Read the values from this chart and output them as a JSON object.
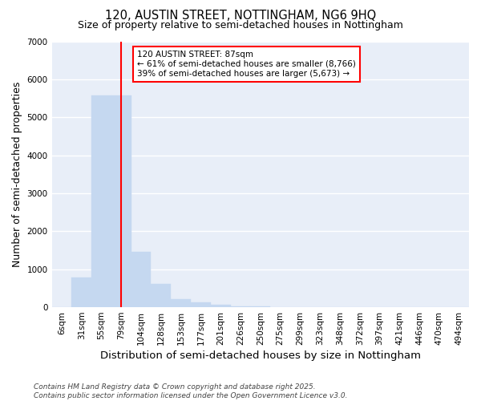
{
  "title1": "120, AUSTIN STREET, NOTTINGHAM, NG6 9HQ",
  "title2": "Size of property relative to semi-detached houses in Nottingham",
  "xlabel": "Distribution of semi-detached houses by size in Nottingham",
  "ylabel": "Number of semi-detached properties",
  "categories": [
    "6sqm",
    "31sqm",
    "55sqm",
    "79sqm",
    "104sqm",
    "128sqm",
    "153sqm",
    "177sqm",
    "201sqm",
    "226sqm",
    "250sqm",
    "275sqm",
    "299sqm",
    "323sqm",
    "348sqm",
    "372sqm",
    "397sqm",
    "421sqm",
    "446sqm",
    "470sqm",
    "494sqm"
  ],
  "values": [
    5,
    780,
    5570,
    5570,
    1450,
    620,
    220,
    120,
    60,
    25,
    15,
    0,
    0,
    0,
    0,
    0,
    0,
    0,
    0,
    0,
    0
  ],
  "bar_color": "#c5d8f0",
  "bar_edgecolor": "#c5d8f0",
  "vline_color": "red",
  "vline_x": 3.5,
  "vline_label": "120 AUSTIN STREET: 87sqm",
  "arrow_left_text": "← 61% of semi-detached houses are smaller (8,766)",
  "arrow_right_text": "39% of semi-detached houses are larger (5,673) →",
  "annotation_box_color": "red",
  "annotation_text_color": "black",
  "ylim": [
    0,
    7000
  ],
  "yticks": [
    0,
    1000,
    2000,
    3000,
    4000,
    5000,
    6000,
    7000
  ],
  "bg_color": "#e8eef8",
  "grid_color": "#ffffff",
  "footer1": "Contains HM Land Registry data © Crown copyright and database right 2025.",
  "footer2": "Contains public sector information licensed under the Open Government Licence v3.0.",
  "title_fontsize": 10.5,
  "subtitle_fontsize": 9,
  "axis_label_fontsize": 9,
  "tick_fontsize": 7.5,
  "footer_fontsize": 6.5
}
